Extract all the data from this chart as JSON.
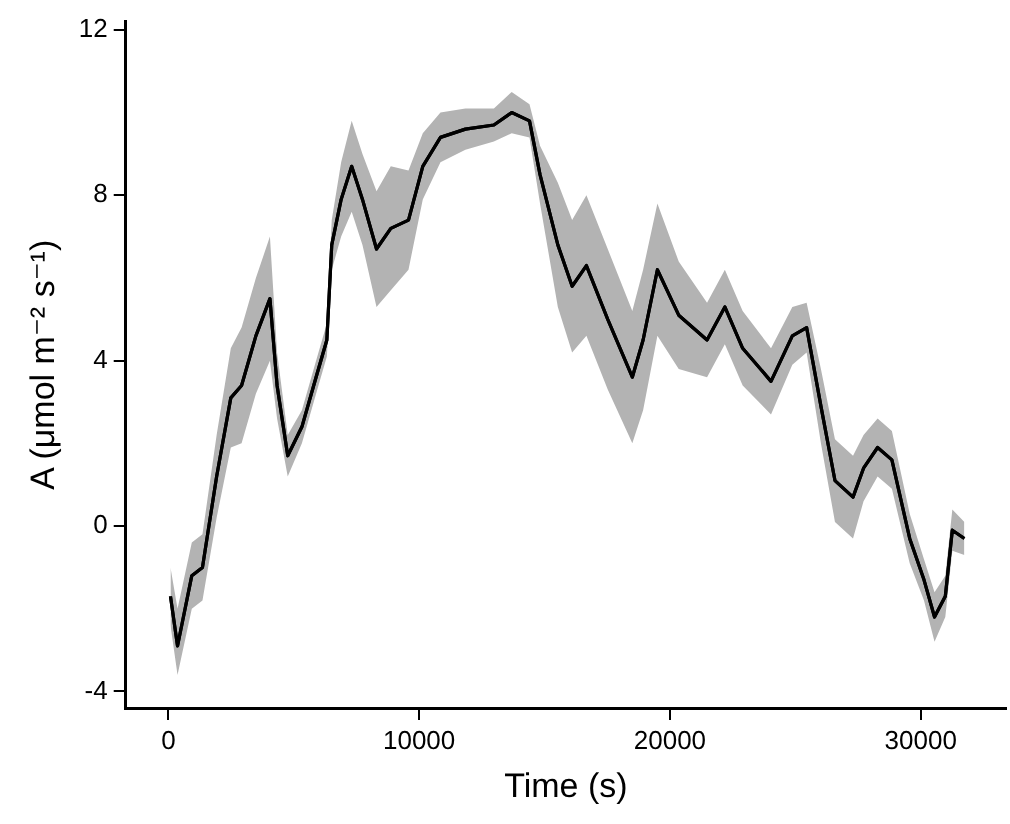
{
  "chart_data": {
    "type": "line",
    "xlabel": "Time (s)",
    "ylabel": "A (μmol m⁻² s⁻¹)",
    "x": [
      85,
      366,
      935,
      1360,
      1925,
      2490,
      2920,
      3490,
      4050,
      4335,
      4760,
      5325,
      5890,
      6320,
      6515,
      6890,
      7310,
      7740,
      8300,
      8870,
      9575,
      10145,
      10850,
      11845,
      12980,
      13690,
      14400,
      14820,
      15530,
      16100,
      16670,
      17520,
      18500,
      18930,
      19500,
      20350,
      21480,
      22190,
      22900,
      24030,
      24880,
      25450,
      26020,
      26580,
      27300,
      27720,
      28280,
      28850,
      29560,
      30130,
      30550,
      30980,
      31260,
      31740
    ],
    "series": [
      {
        "color": "#000000",
        "values": [
          -1.7,
          -2.9,
          -1.2,
          -1.0,
          1.2,
          3.1,
          3.4,
          4.6,
          5.5,
          3.4,
          1.7,
          2.4,
          3.6,
          4.5,
          6.8,
          7.9,
          8.7,
          7.9,
          6.7,
          7.2,
          7.4,
          8.7,
          9.4,
          9.6,
          9.7,
          10.0,
          9.8,
          8.5,
          6.8,
          5.8,
          6.3,
          5.0,
          3.6,
          4.5,
          6.2,
          5.1,
          4.5,
          5.3,
          4.3,
          3.5,
          4.6,
          4.8,
          2.9,
          1.1,
          0.7,
          1.4,
          1.9,
          1.6,
          -0.3,
          -1.3,
          -2.2,
          -1.7,
          -0.1,
          -0.3
        ],
        "lower": [
          -2.4,
          -3.6,
          -2.0,
          -1.8,
          0.2,
          1.9,
          2.0,
          3.2,
          4.0,
          2.6,
          1.2,
          2.0,
          3.2,
          4.1,
          6.2,
          7.0,
          7.6,
          6.8,
          5.3,
          5.7,
          6.2,
          7.9,
          8.8,
          9.1,
          9.3,
          9.5,
          9.4,
          7.8,
          5.3,
          4.2,
          4.6,
          3.3,
          2.0,
          2.8,
          4.6,
          3.8,
          3.6,
          4.4,
          3.4,
          2.7,
          3.9,
          4.2,
          2.0,
          0.1,
          -0.3,
          0.6,
          1.2,
          0.9,
          -0.9,
          -1.8,
          -2.8,
          -2.2,
          -0.6,
          -0.7
        ],
        "upper": [
          -1.0,
          -2.0,
          -0.4,
          -0.2,
          2.2,
          4.3,
          4.8,
          6.0,
          7.0,
          4.2,
          2.2,
          2.8,
          4.0,
          4.9,
          7.4,
          8.8,
          9.8,
          9.0,
          8.1,
          8.7,
          8.6,
          9.5,
          10.0,
          10.1,
          10.1,
          10.5,
          10.2,
          9.2,
          8.3,
          7.4,
          8.0,
          6.7,
          5.2,
          6.2,
          7.8,
          6.4,
          5.4,
          6.2,
          5.2,
          4.3,
          5.3,
          5.4,
          3.8,
          2.1,
          1.7,
          2.2,
          2.6,
          2.3,
          0.3,
          -0.8,
          -1.6,
          -1.2,
          0.4,
          0.1
        ]
      }
    ],
    "xlim": [
      -1700,
      33400
    ],
    "xticks": [
      0,
      10000,
      20000,
      30000
    ],
    "ylim": [
      -4.4,
      12.2
    ],
    "yticks": [
      -4,
      0,
      4,
      8,
      12
    ],
    "grid": false,
    "legend": false,
    "marker": "none",
    "line_style": "solid"
  }
}
